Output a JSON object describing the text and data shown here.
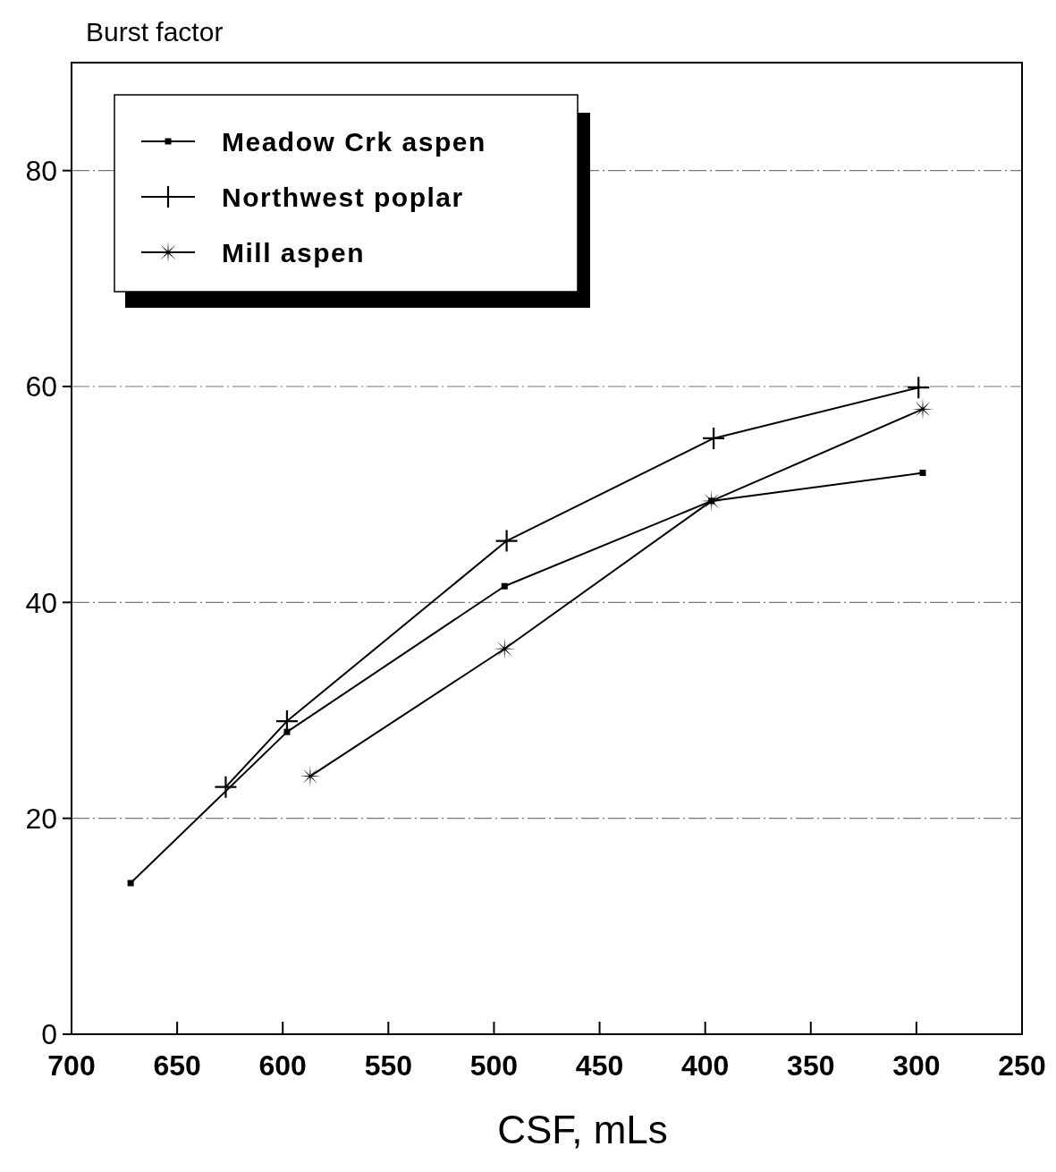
{
  "chart_data": {
    "type": "line",
    "ylabel": "Burst factor",
    "xlabel": "CSF, mLs",
    "xlim": [
      700,
      250
    ],
    "xticks": [
      700,
      650,
      600,
      550,
      500,
      450,
      400,
      350,
      300,
      250
    ],
    "ylim": [
      0,
      90
    ],
    "yticks": [
      0,
      20,
      40,
      60,
      80
    ],
    "grid": "y",
    "legend": "top left",
    "line_style": "solid",
    "series": [
      {
        "name": "Meadow Crk aspen",
        "color": "#000000",
        "marker": "square",
        "x": [
          672,
          598,
          495,
          397,
          297
        ],
        "values": [
          14,
          28,
          41.5,
          49.4,
          52
        ]
      },
      {
        "name": "Northwest poplar",
        "color": "#000000",
        "marker": "cross",
        "x": [
          627,
          598,
          494,
          396,
          299
        ],
        "values": [
          22.9,
          29,
          45.7,
          55.2,
          59.9
        ]
      },
      {
        "name": "Mill aspen",
        "color": "#000000",
        "marker": "star",
        "x": [
          587,
          495,
          397,
          297
        ],
        "values": [
          23.9,
          35.7,
          49.4,
          57.9
        ]
      }
    ]
  }
}
